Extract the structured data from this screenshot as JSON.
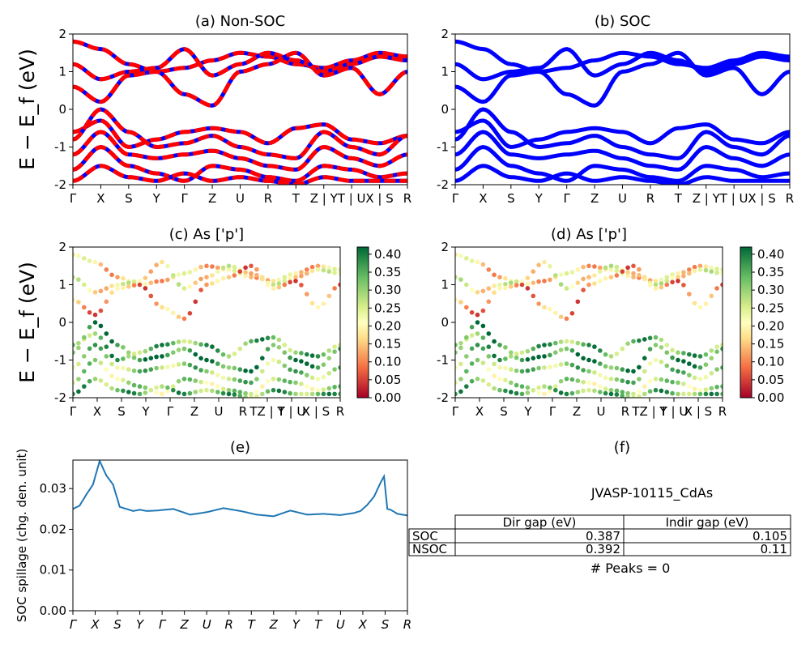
{
  "chart_data": [
    {
      "id": "a",
      "type": "line",
      "title": "(a) Non-SOC",
      "ylabel": "E − E_f (eV)",
      "ylim": [
        -2,
        2
      ],
      "yticks": [
        "-2",
        "-1",
        "0",
        "1",
        "2"
      ],
      "xticks": [
        "Γ",
        "X",
        "S",
        "Y",
        "Γ",
        "Z",
        "U",
        "R",
        "T",
        "Z | Y",
        "T | U",
        "X | S",
        "R"
      ],
      "series": [
        {
          "style": "red-blue-dashed",
          "color": "#ff0000",
          "color2": "#0000ff",
          "bands": [
            [
              1.8,
              1.6,
              1.2,
              1.0,
              1.1,
              1.3,
              1.5,
              1.4,
              1.2,
              1.1,
              1.3,
              1.5,
              1.4
            ],
            [
              1.2,
              0.8,
              1.0,
              1.1,
              1.6,
              0.9,
              1.2,
              1.5,
              1.3,
              1.0,
              1.2,
              1.4,
              1.3
            ],
            [
              0.6,
              0.2,
              0.9,
              1.0,
              0.4,
              0.1,
              1.0,
              1.2,
              1.5,
              0.9,
              1.1,
              0.4,
              1.0
            ],
            [
              -0.6,
              -0.3,
              -1.0,
              -0.8,
              -0.6,
              -0.5,
              -0.6,
              -0.9,
              -0.5,
              -0.4,
              -0.8,
              -0.9,
              -0.7
            ],
            [
              -0.8,
              0.0,
              -0.6,
              -1.0,
              -0.9,
              -0.7,
              -1.0,
              -1.2,
              -1.3,
              -0.6,
              -1.0,
              -1.2,
              -0.7
            ],
            [
              -1.2,
              -0.6,
              -1.2,
              -1.3,
              -1.2,
              -1.1,
              -1.3,
              -1.5,
              -1.6,
              -1.0,
              -1.3,
              -1.5,
              -1.2
            ],
            [
              -1.6,
              -1.0,
              -1.5,
              -1.7,
              -1.9,
              -1.5,
              -1.6,
              -1.8,
              -1.9,
              -1.5,
              -1.6,
              -1.8,
              -1.7
            ],
            [
              -1.9,
              -1.5,
              -1.8,
              -1.9,
              -1.7,
              -1.9,
              -1.8,
              -1.9,
              -2.0,
              -1.8,
              -1.9,
              -1.9,
              -1.9
            ]
          ]
        }
      ]
    },
    {
      "id": "b",
      "type": "line",
      "title": "(b) SOC",
      "ylim": [
        -2,
        2
      ],
      "yticks": [
        "-2",
        "-1",
        "0",
        "1",
        "2"
      ],
      "xticks": [
        "Γ",
        "X",
        "S",
        "Y",
        "Γ",
        "Z",
        "U",
        "R",
        "T",
        "Z | Y",
        "T | U",
        "X | S",
        "R"
      ],
      "series": [
        {
          "style": "solid",
          "color": "#0000ff",
          "bands": [
            [
              1.8,
              1.6,
              1.2,
              1.0,
              1.1,
              1.3,
              1.5,
              1.4,
              1.2,
              1.1,
              1.3,
              1.5,
              1.4
            ],
            [
              1.2,
              0.8,
              1.0,
              1.1,
              1.6,
              0.9,
              1.2,
              1.5,
              1.3,
              1.0,
              1.2,
              1.4,
              1.3
            ],
            [
              0.6,
              0.2,
              0.9,
              1.0,
              0.4,
              0.1,
              1.0,
              1.2,
              1.5,
              0.9,
              1.1,
              0.4,
              1.0
            ],
            [
              -0.6,
              -0.3,
              -1.0,
              -0.8,
              -0.6,
              -0.5,
              -0.6,
              -0.9,
              -0.5,
              -0.4,
              -0.8,
              -0.9,
              -0.6
            ],
            [
              -0.8,
              0.0,
              -0.6,
              -1.0,
              -0.9,
              -0.7,
              -1.0,
              -1.2,
              -1.3,
              -0.6,
              -1.0,
              -1.2,
              -0.7
            ],
            [
              -1.2,
              -0.6,
              -1.2,
              -1.3,
              -1.2,
              -1.1,
              -1.3,
              -1.5,
              -1.6,
              -1.0,
              -1.3,
              -1.5,
              -1.2
            ],
            [
              -1.6,
              -1.0,
              -1.5,
              -1.7,
              -1.9,
              -1.5,
              -1.6,
              -1.8,
              -1.9,
              -1.5,
              -1.6,
              -1.8,
              -1.7
            ],
            [
              -1.9,
              -1.5,
              -1.8,
              -1.9,
              -1.7,
              -1.9,
              -1.8,
              -1.9,
              -2.0,
              -1.8,
              -1.9,
              -1.9,
              -1.9
            ]
          ]
        }
      ]
    },
    {
      "id": "c",
      "type": "scatter",
      "title": "(c)  As ['p']",
      "ylabel": "E − E_f (eV)",
      "ylim": [
        -2,
        2
      ],
      "yticks": [
        "-2",
        "-1",
        "0",
        "1",
        "2"
      ],
      "xticks": [
        "Γ",
        "X",
        "S",
        "Y",
        "Γ",
        "Z",
        "U",
        "R",
        "TZ | Y",
        "T | U",
        "X | S",
        "R"
      ],
      "colorbar": {
        "cmap": "RdYlGn",
        "range": [
          0,
          0.42
        ],
        "ticks": [
          "0.00",
          "0.05",
          "0.10",
          "0.15",
          "0.20",
          "0.25",
          "0.30",
          "0.35",
          "0.40"
        ]
      },
      "bands": [
        {
          "y": [
            1.8,
            1.6,
            1.2,
            1.0,
            1.1,
            1.3,
            1.5,
            1.4,
            1.2,
            1.1,
            1.3,
            1.5,
            1.4
          ],
          "w": 0.17
        },
        {
          "y": [
            1.2,
            0.8,
            1.0,
            1.1,
            1.6,
            0.9,
            1.2,
            1.5,
            1.3,
            1.0,
            1.2,
            1.4,
            1.3
          ],
          "w": 0.2
        },
        {
          "y": [
            0.6,
            0.2,
            0.9,
            1.0,
            0.4,
            0.1,
            1.0,
            1.2,
            1.5,
            0.9,
            1.1,
            0.4,
            1.0
          ],
          "w": 0.12
        },
        {
          "y": [
            -0.6,
            -0.3,
            -1.0,
            -0.8,
            -0.6,
            -0.5,
            -0.6,
            -0.9,
            -0.5,
            -0.4,
            -0.8,
            -0.9,
            -0.6
          ],
          "w": 0.33
        },
        {
          "y": [
            -0.8,
            0.0,
            -0.6,
            -1.0,
            -0.9,
            -0.7,
            -1.0,
            -1.2,
            -1.3,
            -0.6,
            -1.0,
            -1.2,
            -0.7
          ],
          "w": 0.38
        },
        {
          "y": [
            -1.2,
            -0.6,
            -1.2,
            -1.3,
            -1.2,
            -1.1,
            -1.3,
            -1.5,
            -1.6,
            -1.0,
            -1.3,
            -1.5,
            -1.2
          ],
          "w": 0.3
        },
        {
          "y": [
            -1.6,
            -1.0,
            -1.5,
            -1.7,
            -1.9,
            -1.5,
            -1.6,
            -1.8,
            -1.9,
            -1.5,
            -1.6,
            -1.8,
            -1.7
          ],
          "w": 0.27
        },
        {
          "y": [
            -1.9,
            -1.5,
            -1.8,
            -1.9,
            -1.7,
            -1.9,
            -1.8,
            -1.9,
            -2.0,
            -1.8,
            -1.9,
            -1.9,
            -1.9
          ],
          "w": 0.33
        }
      ]
    },
    {
      "id": "d",
      "type": "scatter",
      "title": "(d) As ['p']",
      "ylim": [
        -2,
        2
      ],
      "yticks": [
        "-2",
        "-1",
        "0",
        "1",
        "2"
      ],
      "xticks": [
        "Γ",
        "X",
        "S",
        "Y",
        "Γ",
        "Z",
        "U",
        "R",
        "TZ | Y",
        "T | U",
        "X | S",
        "R"
      ],
      "colorbar": {
        "cmap": "RdYlGn",
        "range": [
          0,
          0.42
        ],
        "ticks": [
          "0.00",
          "0.05",
          "0.10",
          "0.15",
          "0.20",
          "0.25",
          "0.30",
          "0.35",
          "0.40"
        ]
      },
      "bands": [
        {
          "y": [
            1.8,
            1.6,
            1.2,
            1.0,
            1.1,
            1.3,
            1.5,
            1.4,
            1.2,
            1.1,
            1.3,
            1.5,
            1.4
          ],
          "w": 0.17
        },
        {
          "y": [
            1.2,
            0.8,
            1.0,
            1.1,
            1.6,
            0.9,
            1.2,
            1.5,
            1.3,
            1.0,
            1.2,
            1.4,
            1.3
          ],
          "w": 0.21
        },
        {
          "y": [
            0.6,
            0.2,
            0.9,
            1.0,
            0.4,
            0.1,
            1.0,
            1.2,
            1.5,
            0.9,
            1.1,
            0.4,
            1.0
          ],
          "w": 0.12
        },
        {
          "y": [
            -0.6,
            -0.3,
            -1.0,
            -0.8,
            -0.6,
            -0.5,
            -0.6,
            -0.9,
            -0.5,
            -0.4,
            -0.8,
            -0.9,
            -0.6
          ],
          "w": 0.33
        },
        {
          "y": [
            -0.8,
            0.0,
            -0.6,
            -1.0,
            -0.9,
            -0.7,
            -1.0,
            -1.2,
            -1.3,
            -0.6,
            -1.0,
            -1.2,
            -0.7
          ],
          "w": 0.38
        },
        {
          "y": [
            -1.2,
            -0.6,
            -1.2,
            -1.3,
            -1.2,
            -1.1,
            -1.3,
            -1.5,
            -1.6,
            -1.0,
            -1.3,
            -1.5,
            -1.2
          ],
          "w": 0.3
        },
        {
          "y": [
            -1.6,
            -1.0,
            -1.5,
            -1.7,
            -1.9,
            -1.5,
            -1.6,
            -1.8,
            -1.9,
            -1.5,
            -1.6,
            -1.8,
            -1.7
          ],
          "w": 0.27
        },
        {
          "y": [
            -1.9,
            -1.5,
            -1.8,
            -1.9,
            -1.7,
            -1.9,
            -1.8,
            -1.9,
            -2.0,
            -1.8,
            -1.9,
            -1.9,
            -1.9
          ],
          "w": 0.33
        }
      ]
    },
    {
      "id": "e",
      "type": "line",
      "title": "(e)",
      "ylabel": "SOC spillage (chg. den. unit)",
      "ylim": [
        0,
        0.037
      ],
      "yticks": [
        "0.00",
        "0.01",
        "0.02",
        "0.03"
      ],
      "xticks": [
        "Γ",
        "X",
        "S",
        "Y",
        "Γ",
        "Z",
        "U",
        "R",
        "T",
        "Z",
        "Y",
        "T",
        "U",
        "X",
        "S",
        "R"
      ],
      "series": [
        {
          "color": "#1f77b4",
          "x": [
            0,
            0.02,
            0.04,
            0.06,
            0.08,
            0.1,
            0.12,
            0.14,
            0.16,
            0.18,
            0.2,
            0.22,
            0.25,
            0.3,
            0.35,
            0.4,
            0.45,
            0.5,
            0.55,
            0.6,
            0.65,
            0.7,
            0.75,
            0.8,
            0.84,
            0.86,
            0.88,
            0.9,
            0.92,
            0.93,
            0.94,
            0.95,
            0.97,
            1.0
          ],
          "y": [
            0.025,
            0.0258,
            0.0285,
            0.031,
            0.0368,
            0.0332,
            0.031,
            0.0255,
            0.025,
            0.0245,
            0.0248,
            0.0245,
            0.0246,
            0.025,
            0.0236,
            0.0242,
            0.0252,
            0.0245,
            0.0236,
            0.0232,
            0.0246,
            0.0236,
            0.0238,
            0.0235,
            0.024,
            0.0245,
            0.026,
            0.028,
            0.0315,
            0.033,
            0.025,
            0.0248,
            0.0238,
            0.0234
          ]
        }
      ]
    },
    {
      "id": "f",
      "type": "table",
      "title": "(f)",
      "subtitle": "JVASP-10115_CdAs",
      "columns": [
        "",
        "Dir gap (eV)",
        "Indir gap (eV)"
      ],
      "rows": [
        [
          "SOC",
          "0.387",
          "0.105"
        ],
        [
          "NSOC",
          "0.392",
          "0.11"
        ]
      ],
      "footer": "# Peaks = 0"
    }
  ]
}
